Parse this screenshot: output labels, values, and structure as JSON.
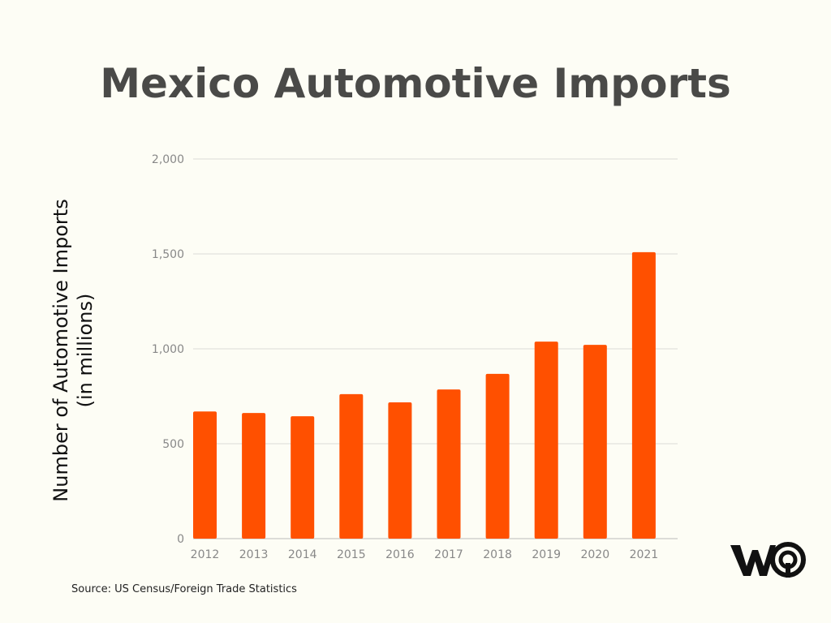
{
  "chart_data": {
    "type": "bar",
    "title": "Mexico Automotive Imports",
    "xlabel": "",
    "ylabel": [
      "Number of Automotive Imports",
      "(in millions)"
    ],
    "categories": [
      "2012",
      "2013",
      "2014",
      "2015",
      "2016",
      "2017",
      "2018",
      "2019",
      "2020",
      "2021"
    ],
    "values": [
      670,
      662,
      645,
      761,
      718,
      786,
      868,
      1038,
      1021,
      1509
    ],
    "ylim": [
      0,
      2000
    ],
    "yticks": [
      0,
      500,
      1000,
      1500,
      2000
    ],
    "ytick_labels": [
      "0",
      "500",
      "1,000",
      "1,500",
      "2,000"
    ],
    "grid": true,
    "bar_color": "#ff5000"
  },
  "source": "Source: US Census/Foreign Trade Statistics",
  "logo": {
    "name": "logo-icon",
    "text": "WO"
  }
}
